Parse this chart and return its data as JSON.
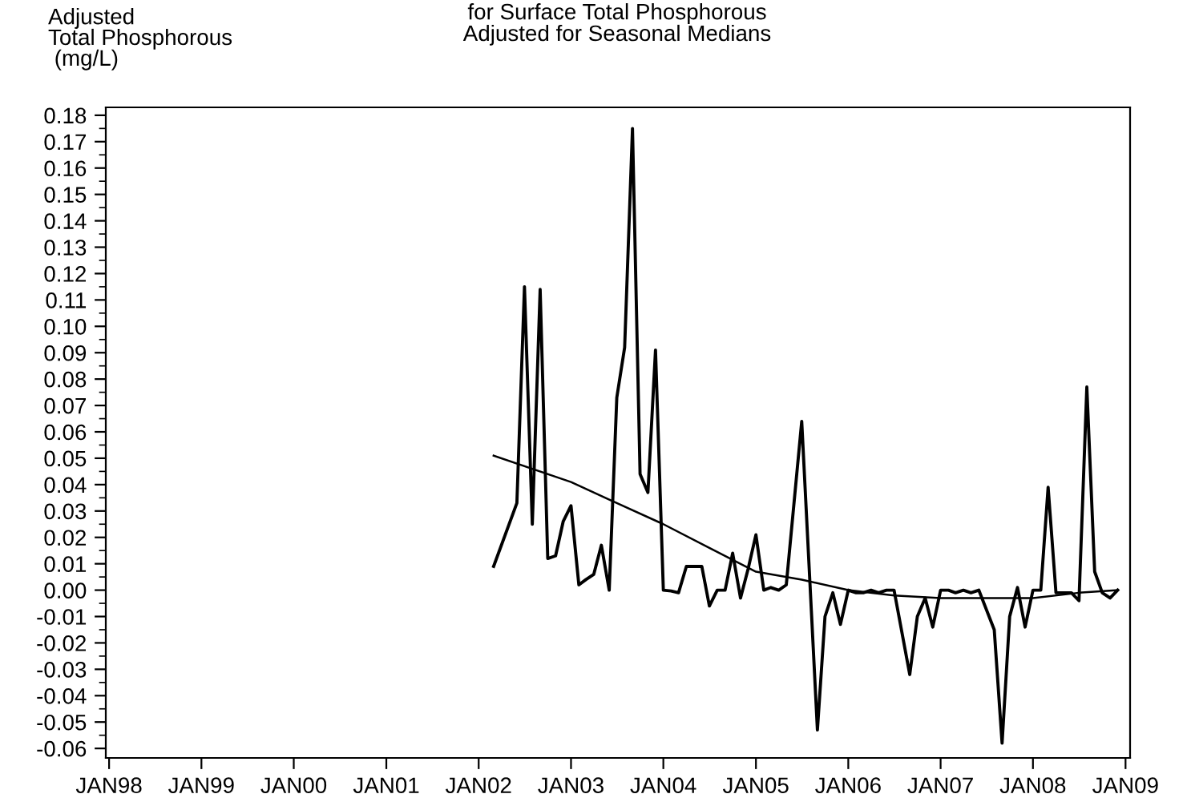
{
  "chart_data": {
    "type": "line",
    "title": "for Surface Total Phosphorous\nAdjusted for Seasonal Medians",
    "ylabel": "Adjusted\nTotal Phosphorous\n (mg/L)",
    "xlim": [
      "1997-12-19",
      "2009-01-19"
    ],
    "ylim": [
      -0.0636,
      0.183
    ],
    "xticks": [
      {
        "value": "1998-01-01",
        "label": "JAN98"
      },
      {
        "value": "1999-01-01",
        "label": "JAN99"
      },
      {
        "value": "2000-01-01",
        "label": "JAN00"
      },
      {
        "value": "2001-01-01",
        "label": "JAN01"
      },
      {
        "value": "2002-01-01",
        "label": "JAN02"
      },
      {
        "value": "2003-01-01",
        "label": "JAN03"
      },
      {
        "value": "2004-01-01",
        "label": "JAN04"
      },
      {
        "value": "2005-01-01",
        "label": "JAN05"
      },
      {
        "value": "2006-01-01",
        "label": "JAN06"
      },
      {
        "value": "2007-01-01",
        "label": "JAN07"
      },
      {
        "value": "2008-01-01",
        "label": "JAN08"
      },
      {
        "value": "2009-01-01",
        "label": "JAN09"
      }
    ],
    "yticks": [
      0.18,
      0.17,
      0.16,
      0.15,
      0.14,
      0.13,
      0.12,
      0.11,
      {
        "value": 0.1,
        "label": "0.10"
      },
      0.09,
      0.08,
      0.07,
      0.06,
      0.05,
      0.04,
      0.03,
      0.02,
      0.01,
      {
        "value": 0,
        "label": "0.00"
      },
      -0.01,
      -0.02,
      -0.03,
      -0.04,
      -0.05,
      -0.06,
      {
        "value": 0.175,
        "label": null
      },
      {
        "value": 0.165,
        "label": null
      },
      {
        "value": 0.155,
        "label": null
      },
      {
        "value": 0.145,
        "label": null
      },
      {
        "value": 0.135,
        "label": null
      },
      {
        "value": 0.125,
        "label": null
      },
      {
        "value": 0.115,
        "label": null
      },
      {
        "value": 0.105,
        "label": null
      },
      {
        "value": 0.095,
        "label": null
      },
      {
        "value": 0.085,
        "label": null
      },
      {
        "value": 0.075,
        "label": null
      },
      {
        "value": 0.065,
        "label": null
      },
      {
        "value": 0.055,
        "label": null
      },
      {
        "value": 0.045,
        "label": null
      },
      {
        "value": 0.035,
        "label": null
      },
      {
        "value": 0.025,
        "label": null
      },
      {
        "value": 0.015,
        "label": null
      },
      {
        "value": 0.005,
        "label": null
      },
      {
        "value": -0.005,
        "label": null
      },
      {
        "value": -0.015,
        "label": null
      },
      {
        "value": -0.025,
        "label": null
      },
      {
        "value": -0.035,
        "label": null
      },
      {
        "value": -0.045,
        "label": null
      },
      {
        "value": -0.055,
        "label": null
      }
    ],
    "grid": false,
    "legend": false,
    "marker": "none",
    "line_style": "solid",
    "series": [
      {
        "color": "#000000",
        "x": [
          "2002-03",
          "2002-06",
          "2002-07",
          "2002-08",
          "2002-09",
          "2002-10",
          "2002-11",
          "2002-12",
          "2003-01",
          "2003-02",
          "2003-03",
          "2003-04",
          "2003-05",
          "2003-06",
          "2003-07",
          "2003-08",
          "2003-09",
          "2003-10",
          "2003-11",
          "2003-12",
          "2004-01",
          "2004-02",
          "2004-03",
          "2004-04",
          "2004-05",
          "2004-06",
          "2004-07",
          "2004-08",
          "2004-09",
          "2004-10",
          "2004-11",
          "2004-12",
          "2005-01",
          "2005-02",
          "2005-03",
          "2005-04",
          "2005-05",
          "2005-07",
          "2005-09",
          "2005-10",
          "2005-11",
          "2005-12",
          "2006-01",
          "2006-02",
          "2006-03",
          "2006-04",
          "2006-05",
          "2006-06",
          "2006-07",
          "2006-09",
          "2006-10",
          "2006-11",
          "2006-12",
          "2007-01",
          "2007-02",
          "2007-03",
          "2007-04",
          "2007-05",
          "2007-06",
          "2007-08",
          "2007-09",
          "2007-10",
          "2007-11",
          "2007-12",
          "2008-01",
          "2008-02",
          "2008-03",
          "2008-04",
          "2008-05",
          "2008-06",
          "2008-07",
          "2008-08",
          "2008-09",
          "2008-10",
          "2008-11",
          "2008-12"
        ],
        "values": [
          0.009,
          0.033,
          0.115,
          0.025,
          0.114,
          0.012,
          0.013,
          0.026,
          0.032,
          0.002,
          0.004,
          0.006,
          0.017,
          0.0,
          0.073,
          0.092,
          0.175,
          0.044,
          0.037,
          0.091,
          0.0,
          -0.0003,
          -0.001,
          0.009,
          0.009,
          0.009,
          -0.006,
          0.0,
          0.0,
          0.014,
          -0.003,
          0.008,
          0.021,
          0.0,
          0.001,
          0.0,
          0.002,
          0.064,
          -0.053,
          -0.01,
          -0.001,
          -0.013,
          0.0,
          -0.001,
          -0.001,
          0.0,
          -0.001,
          0.0,
          0.0,
          -0.032,
          -0.01,
          -0.003,
          -0.014,
          0.0,
          0.0,
          -0.001,
          0.0,
          -0.001,
          0.0,
          -0.015,
          -0.058,
          -0.01,
          0.001,
          -0.014,
          0.0,
          0.0,
          0.039,
          -0.001,
          -0.001,
          -0.001,
          -0.004,
          0.077,
          0.007,
          -0.001,
          -0.003,
          0.0
        ]
      },
      {
        "color": "#000000",
        "x": [
          "2002-03",
          "2003-01",
          "2003-07",
          "2004-01",
          "2004-07",
          "2005-01",
          "2005-07",
          "2006-01",
          "2006-07",
          "2007-01",
          "2007-07",
          "2008-01",
          "2008-07",
          "2008-12"
        ],
        "values": [
          0.051,
          0.041,
          0.033,
          0.025,
          0.016,
          0.007,
          0.004,
          0.0,
          -0.002,
          -0.003,
          -0.003,
          -0.003,
          -0.001,
          0.0
        ]
      }
    ]
  }
}
